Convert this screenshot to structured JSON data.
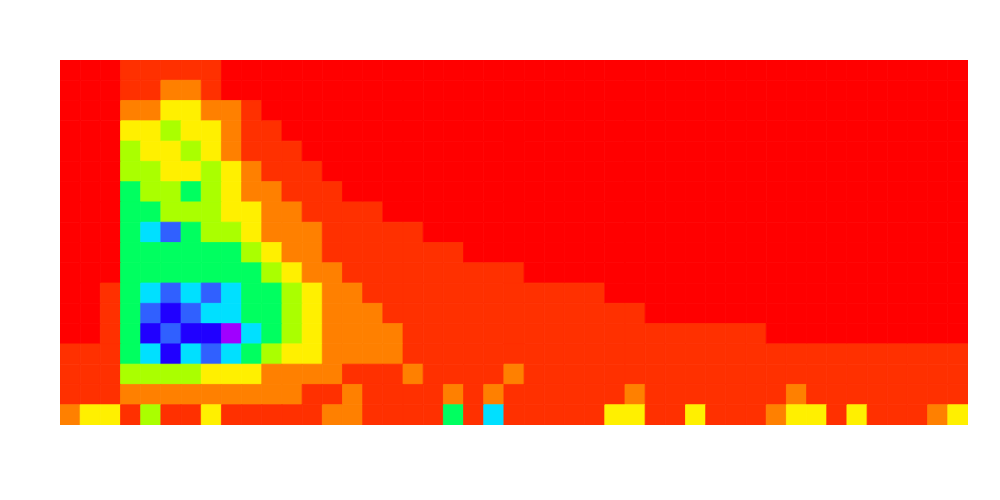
{
  "chart_data": {
    "type": "heatmap",
    "xlim": [
      0,
      45
    ],
    "ylim": [
      0,
      18
    ],
    "zlim": [
      0,
      9
    ],
    "tick_labels": false,
    "cells": [
      [
        0,
        0,
        0,
        1,
        1,
        1,
        1,
        1,
        0,
        0,
        0,
        0,
        0,
        0,
        0,
        0,
        0,
        0,
        0,
        0,
        0,
        0,
        0,
        0,
        0,
        0,
        0,
        0,
        0,
        0,
        0,
        0,
        0,
        0,
        0,
        0,
        0,
        0,
        0,
        0,
        0,
        0,
        0,
        0,
        0
      ],
      [
        0,
        0,
        0,
        1,
        1,
        2,
        2,
        1,
        0,
        0,
        0,
        0,
        0,
        0,
        0,
        0,
        0,
        0,
        0,
        0,
        0,
        0,
        0,
        0,
        0,
        0,
        0,
        0,
        0,
        0,
        0,
        0,
        0,
        0,
        0,
        0,
        0,
        0,
        0,
        0,
        0,
        0,
        0,
        0,
        0
      ],
      [
        0,
        0,
        0,
        2,
        2,
        3,
        3,
        2,
        2,
        1,
        0,
        0,
        0,
        0,
        0,
        0,
        0,
        0,
        0,
        0,
        0,
        0,
        0,
        0,
        0,
        0,
        0,
        0,
        0,
        0,
        0,
        0,
        0,
        0,
        0,
        0,
        0,
        0,
        0,
        0,
        0,
        0,
        0,
        0,
        0
      ],
      [
        0,
        0,
        0,
        3,
        3,
        4,
        3,
        3,
        2,
        1,
        1,
        0,
        0,
        0,
        0,
        0,
        0,
        0,
        0,
        0,
        0,
        0,
        0,
        0,
        0,
        0,
        0,
        0,
        0,
        0,
        0,
        0,
        0,
        0,
        0,
        0,
        0,
        0,
        0,
        0,
        0,
        0,
        0,
        0,
        0
      ],
      [
        0,
        0,
        0,
        4,
        3,
        3,
        4,
        3,
        2,
        1,
        1,
        1,
        0,
        0,
        0,
        0,
        0,
        0,
        0,
        0,
        0,
        0,
        0,
        0,
        0,
        0,
        0,
        0,
        0,
        0,
        0,
        0,
        0,
        0,
        0,
        0,
        0,
        0,
        0,
        0,
        0,
        0,
        0,
        0,
        0
      ],
      [
        0,
        0,
        0,
        4,
        4,
        3,
        3,
        4,
        3,
        2,
        1,
        1,
        1,
        0,
        0,
        0,
        0,
        0,
        0,
        0,
        0,
        0,
        0,
        0,
        0,
        0,
        0,
        0,
        0,
        0,
        0,
        0,
        0,
        0,
        0,
        0,
        0,
        0,
        0,
        0,
        0,
        0,
        0,
        0,
        0
      ],
      [
        0,
        0,
        0,
        5,
        4,
        4,
        5,
        4,
        3,
        2,
        2,
        1,
        1,
        1,
        0,
        0,
        0,
        0,
        0,
        0,
        0,
        0,
        0,
        0,
        0,
        0,
        0,
        0,
        0,
        0,
        0,
        0,
        0,
        0,
        0,
        0,
        0,
        0,
        0,
        0,
        0,
        0,
        0,
        0,
        0
      ],
      [
        0,
        0,
        0,
        5,
        5,
        4,
        4,
        4,
        3,
        3,
        2,
        2,
        1,
        1,
        1,
        1,
        0,
        0,
        0,
        0,
        0,
        0,
        0,
        0,
        0,
        0,
        0,
        0,
        0,
        0,
        0,
        0,
        0,
        0,
        0,
        0,
        0,
        0,
        0,
        0,
        0,
        0,
        0,
        0,
        0
      ],
      [
        0,
        0,
        0,
        5,
        6,
        7,
        5,
        4,
        4,
        3,
        2,
        2,
        2,
        1,
        1,
        1,
        1,
        1,
        0,
        0,
        0,
        0,
        0,
        0,
        0,
        0,
        0,
        0,
        0,
        0,
        0,
        0,
        0,
        0,
        0,
        0,
        0,
        0,
        0,
        0,
        0,
        0,
        0,
        0,
        0
      ],
      [
        0,
        0,
        0,
        5,
        5,
        5,
        5,
        5,
        5,
        4,
        3,
        2,
        2,
        1,
        1,
        1,
        1,
        1,
        1,
        1,
        0,
        0,
        0,
        0,
        0,
        0,
        0,
        0,
        0,
        0,
        0,
        0,
        0,
        0,
        0,
        0,
        0,
        0,
        0,
        0,
        0,
        0,
        0,
        0,
        0
      ],
      [
        0,
        0,
        0,
        5,
        5,
        5,
        5,
        5,
        5,
        5,
        4,
        3,
        2,
        2,
        1,
        1,
        1,
        1,
        1,
        1,
        1,
        1,
        1,
        0,
        0,
        0,
        0,
        0,
        0,
        0,
        0,
        0,
        0,
        0,
        0,
        0,
        0,
        0,
        0,
        0,
        0,
        0,
        0,
        0,
        0
      ],
      [
        0,
        0,
        1,
        5,
        6,
        7,
        6,
        7,
        6,
        5,
        5,
        4,
        3,
        2,
        2,
        1,
        1,
        1,
        1,
        1,
        1,
        1,
        1,
        1,
        1,
        1,
        1,
        0,
        0,
        0,
        0,
        0,
        0,
        0,
        0,
        0,
        0,
        0,
        0,
        0,
        0,
        0,
        0,
        0,
        0
      ],
      [
        0,
        0,
        1,
        5,
        7,
        8,
        7,
        6,
        6,
        5,
        5,
        4,
        3,
        2,
        2,
        2,
        1,
        1,
        1,
        1,
        1,
        1,
        1,
        1,
        1,
        1,
        1,
        1,
        1,
        0,
        0,
        0,
        0,
        0,
        0,
        0,
        0,
        0,
        0,
        0,
        0,
        0,
        0,
        0,
        0
      ],
      [
        0,
        0,
        1,
        5,
        8,
        7,
        8,
        8,
        9,
        6,
        5,
        4,
        3,
        2,
        2,
        2,
        2,
        1,
        1,
        1,
        1,
        1,
        1,
        1,
        1,
        1,
        1,
        1,
        1,
        1,
        1,
        1,
        1,
        1,
        1,
        0,
        0,
        0,
        0,
        0,
        0,
        0,
        0,
        0,
        0
      ],
      [
        1,
        1,
        1,
        5,
        6,
        8,
        6,
        7,
        6,
        5,
        4,
        3,
        3,
        2,
        2,
        2,
        2,
        1,
        1,
        1,
        1,
        1,
        1,
        1,
        1,
        1,
        1,
        1,
        1,
        1,
        1,
        1,
        1,
        1,
        1,
        1,
        1,
        1,
        1,
        1,
        1,
        1,
        1,
        1,
        1
      ],
      [
        1,
        1,
        1,
        4,
        4,
        4,
        4,
        3,
        3,
        3,
        2,
        2,
        2,
        2,
        1,
        1,
        1,
        2,
        1,
        1,
        1,
        1,
        2,
        1,
        1,
        1,
        1,
        1,
        1,
        1,
        1,
        1,
        1,
        1,
        1,
        1,
        1,
        1,
        1,
        1,
        1,
        1,
        1,
        1,
        1
      ],
      [
        1,
        1,
        1,
        2,
        2,
        2,
        2,
        2,
        2,
        2,
        2,
        2,
        1,
        1,
        2,
        1,
        1,
        1,
        1,
        2,
        1,
        2,
        1,
        1,
        1,
        1,
        1,
        1,
        2,
        1,
        1,
        1,
        1,
        1,
        1,
        1,
        2,
        1,
        1,
        1,
        1,
        1,
        1,
        1,
        1
      ],
      [
        2,
        3,
        3,
        1,
        4,
        1,
        1,
        3,
        1,
        1,
        1,
        1,
        1,
        2,
        2,
        1,
        1,
        1,
        1,
        5,
        1,
        6,
        1,
        1,
        1,
        1,
        1,
        3,
        3,
        1,
        1,
        3,
        1,
        1,
        1,
        2,
        3,
        3,
        1,
        3,
        1,
        1,
        1,
        2,
        3
      ]
    ]
  }
}
